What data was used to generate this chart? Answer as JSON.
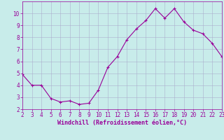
{
  "x": [
    2,
    3,
    4,
    5,
    6,
    7,
    8,
    9,
    10,
    11,
    12,
    13,
    14,
    15,
    16,
    17,
    18,
    19,
    20,
    21,
    22,
    23
  ],
  "y": [
    4.9,
    4.0,
    4.0,
    2.9,
    2.6,
    2.7,
    2.4,
    2.5,
    3.6,
    5.5,
    6.4,
    7.8,
    8.7,
    9.4,
    10.4,
    9.6,
    10.4,
    9.3,
    8.6,
    8.3,
    7.5,
    6.4
  ],
  "line_color": "#990099",
  "marker": "+",
  "markersize": 3,
  "linewidth": 0.8,
  "bg_color": "#c8ecea",
  "grid_color": "#aaaacc",
  "xlabel": "Windchill (Refroidissement éolien,°C)",
  "xlabel_color": "#990099",
  "xlabel_fontsize": 6,
  "tick_color": "#990099",
  "tick_fontsize": 5.5,
  "xlim": [
    2,
    23
  ],
  "ylim": [
    2,
    11
  ],
  "yticks": [
    2,
    3,
    4,
    5,
    6,
    7,
    8,
    9,
    10
  ],
  "xticks": [
    2,
    3,
    4,
    5,
    6,
    7,
    8,
    9,
    10,
    11,
    12,
    13,
    14,
    15,
    16,
    17,
    18,
    19,
    20,
    21,
    22,
    23
  ]
}
